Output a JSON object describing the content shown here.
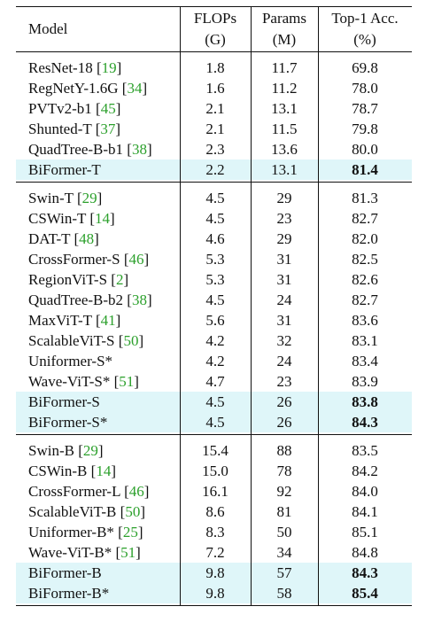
{
  "header": {
    "model": "Model",
    "flops": "FLOPs",
    "flops_unit": "(G)",
    "params": "Params",
    "params_unit": "(M)",
    "acc": "Top-1 Acc.",
    "acc_unit": "(%)"
  },
  "groups": [
    {
      "rows": [
        {
          "model": "ResNet-18",
          "cite": "19",
          "flops": "1.8",
          "params": "11.7",
          "acc": "69.8",
          "bold": false,
          "highlight": false
        },
        {
          "model": "RegNetY-1.6G",
          "cite": "34",
          "flops": "1.6",
          "params": "11.2",
          "acc": "78.0",
          "bold": false,
          "highlight": false
        },
        {
          "model": "PVTv2-b1",
          "cite": "45",
          "flops": "2.1",
          "params": "13.1",
          "acc": "78.7",
          "bold": false,
          "highlight": false
        },
        {
          "model": "Shunted-T",
          "cite": "37",
          "flops": "2.1",
          "params": "11.5",
          "acc": "79.8",
          "bold": false,
          "highlight": false
        },
        {
          "model": "QuadTree-B-b1",
          "cite": "38",
          "flops": "2.3",
          "params": "13.6",
          "acc": "80.0",
          "bold": false,
          "highlight": false
        },
        {
          "model": "BiFormer-T",
          "cite": "",
          "flops": "2.2",
          "params": "13.1",
          "acc": "81.4",
          "bold": true,
          "highlight": true
        }
      ]
    },
    {
      "rows": [
        {
          "model": "Swin-T",
          "cite": "29",
          "flops": "4.5",
          "params": "29",
          "acc": "81.3",
          "bold": false,
          "highlight": false
        },
        {
          "model": "CSWin-T",
          "cite": "14",
          "flops": "4.5",
          "params": "23",
          "acc": "82.7",
          "bold": false,
          "highlight": false
        },
        {
          "model": "DAT-T",
          "cite": "48",
          "flops": "4.6",
          "params": "29",
          "acc": "82.0",
          "bold": false,
          "highlight": false
        },
        {
          "model": "CrossFormer-S",
          "cite": "46",
          "flops": "5.3",
          "params": "31",
          "acc": "82.5",
          "bold": false,
          "highlight": false
        },
        {
          "model": "RegionViT-S",
          "cite": "2",
          "flops": "5.3",
          "params": "31",
          "acc": "82.6",
          "bold": false,
          "highlight": false
        },
        {
          "model": "QuadTree-B-b2",
          "cite": "38",
          "flops": "4.5",
          "params": "24",
          "acc": "82.7",
          "bold": false,
          "highlight": false
        },
        {
          "model": "MaxViT-T",
          "cite": "41",
          "flops": "5.6",
          "params": "31",
          "acc": "83.6",
          "bold": false,
          "highlight": false
        },
        {
          "model": "ScalableViT-S",
          "cite": "50",
          "flops": "4.2",
          "params": "32",
          "acc": "83.1",
          "bold": false,
          "highlight": false
        },
        {
          "model": "Uniformer-S*",
          "cite": "",
          "flops": "4.2",
          "params": "24",
          "acc": "83.4",
          "bold": false,
          "highlight": false
        },
        {
          "model": "Wave-ViT-S*",
          "cite": "51",
          "flops": "4.7",
          "params": "23",
          "acc": "83.9",
          "bold": false,
          "highlight": false
        },
        {
          "model": "BiFormer-S",
          "cite": "",
          "flops": "4.5",
          "params": "26",
          "acc": "83.8",
          "bold": true,
          "highlight": true
        },
        {
          "model": "BiFormer-S*",
          "cite": "",
          "flops": "4.5",
          "params": "26",
          "acc": "84.3",
          "bold": true,
          "highlight": true
        }
      ]
    },
    {
      "rows": [
        {
          "model": "Swin-B",
          "cite": "29",
          "flops": "15.4",
          "params": "88",
          "acc": "83.5",
          "bold": false,
          "highlight": false
        },
        {
          "model": "CSWin-B",
          "cite": "14",
          "flops": "15.0",
          "params": "78",
          "acc": "84.2",
          "bold": false,
          "highlight": false
        },
        {
          "model": "CrossFormer-L",
          "cite": "46",
          "flops": "16.1",
          "params": "92",
          "acc": "84.0",
          "bold": false,
          "highlight": false
        },
        {
          "model": "ScalableViT-B",
          "cite": "50",
          "flops": "8.6",
          "params": "81",
          "acc": "84.1",
          "bold": false,
          "highlight": false
        },
        {
          "model": "Uniformer-B*",
          "cite": "25",
          "flops": "8.3",
          "params": "50",
          "acc": "85.1",
          "bold": false,
          "highlight": false
        },
        {
          "model": "Wave-ViT-B*",
          "cite": "51",
          "flops": "7.2",
          "params": "34",
          "acc": "84.8",
          "bold": false,
          "highlight": false
        },
        {
          "model": "BiFormer-B",
          "cite": "",
          "flops": "9.8",
          "params": "57",
          "acc": "84.3",
          "bold": true,
          "highlight": true
        },
        {
          "model": "BiFormer-B*",
          "cite": "",
          "flops": "9.8",
          "params": "58",
          "acc": "85.4",
          "bold": true,
          "highlight": true
        }
      ]
    }
  ]
}
